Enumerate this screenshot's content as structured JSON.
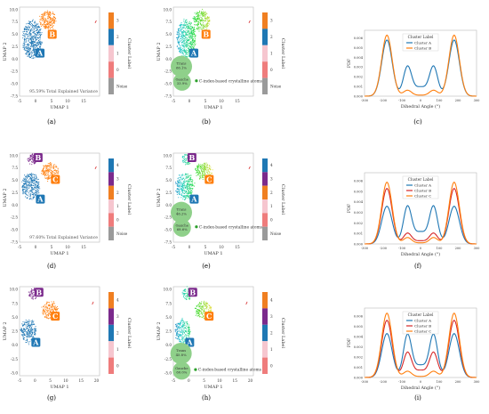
{
  "panels": [
    {
      "id": "a",
      "caption": "(a)",
      "kind": "umap",
      "annotation": "95.59% Total Explained Variance",
      "xlabel": "UMAP 1",
      "ylabel": "UMAP 2",
      "xticks": [
        -5,
        0,
        5,
        10,
        15
      ],
      "yticks": [
        10.0,
        7.5,
        5.0,
        2.5,
        0.0,
        -2.5,
        -5.0,
        -7.5
      ],
      "xlim": [
        -5,
        20
      ],
      "ylim": [
        -7.5,
        10.5
      ],
      "clusters": [
        {
          "label": "A",
          "color": "#1f77b4",
          "cx": -1,
          "cy": 4,
          "rx": 3.0,
          "ry": 3.8,
          "label_x": 1.4,
          "label_y": 1.2
        },
        {
          "label": "B",
          "color": "#ff7f0e",
          "cx": 3.8,
          "cy": 7.8,
          "rx": 2.6,
          "ry": 1.9,
          "label_x": 5.2,
          "label_y": 5.0
        }
      ],
      "colorbar": {
        "title": "Cluster Label",
        "labels": [
          "3",
          "2",
          "1",
          "0",
          "Noise"
        ],
        "colors": [
          "#f07f21",
          "#1f78b4",
          "#f6c6cf",
          "#ef7c7c",
          "#9a9a9a"
        ]
      }
    },
    {
      "id": "b",
      "caption": "(b)",
      "kind": "umap-colored",
      "annotation": "",
      "xlabel": "UMAP 1",
      "ylabel": "UMAP 2",
      "xticks": [
        -5,
        0,
        5,
        10,
        15
      ],
      "yticks": [
        10.0,
        7.5,
        5.0,
        2.5,
        0.0,
        -2.5,
        -5.0,
        -7.5
      ],
      "xlim": [
        -5,
        20
      ],
      "ylim": [
        -7.5,
        10.5
      ],
      "clusters": [
        {
          "label": "A",
          "color": "#1f77b4",
          "cx": -1,
          "cy": 4,
          "rx": 3.0,
          "ry": 3.8,
          "label_x": 1.4,
          "label_y": 1.2
        },
        {
          "label": "B",
          "color": "#ff7f0e",
          "cx": 3.8,
          "cy": 7.8,
          "rx": 2.6,
          "ry": 1.9,
          "label_x": 5.2,
          "label_y": 5.0
        }
      ],
      "pie": {
        "items": [
          {
            "name": "Trans",
            "value": "66.1%"
          },
          {
            "name": "Gauche",
            "value": "33.9%"
          }
        ]
      },
      "legend_text": "C-index-based crystalline atoms",
      "colorbar": {
        "title": "Cluster Label",
        "labels": [
          "3",
          "2",
          "1",
          "0",
          "Noise"
        ],
        "colors": [
          "#f07f21",
          "#1f78b4",
          "#f6c6cf",
          "#ef7c7c",
          "#9a9a9a"
        ]
      }
    },
    {
      "id": "c",
      "caption": "(c)",
      "kind": "pdf",
      "legend_title": "Cluster Label",
      "xlabel": "Dihedral Angle (°)",
      "ylabel": "PDF",
      "xticks": [
        -300,
        -200,
        -100,
        0,
        100,
        200,
        300
      ],
      "yticks": [
        0.0,
        0.001,
        0.002,
        0.003,
        0.004,
        0.005,
        0.006
      ],
      "xlim": [
        -300,
        300
      ],
      "ylim": [
        0,
        0.0068
      ],
      "series": [
        {
          "name": "Cluster A",
          "color": "#1f77b4",
          "peak": 0.0058,
          "side": 0.003,
          "valley": 0.0019
        },
        {
          "name": "Cluster B",
          "color": "#ff7f0e",
          "peak": 0.0063,
          "side": 0.0006,
          "valley": 0.0002
        }
      ]
    },
    {
      "id": "d",
      "caption": "(d)",
      "kind": "umap",
      "annotation": "97.60% Total Explained Variance",
      "xlabel": "UMAP 1",
      "ylabel": "UMAP 2",
      "xticks": [
        -5,
        0,
        5,
        10,
        15
      ],
      "yticks": [
        10.0,
        7.5,
        5.0,
        2.5,
        0.0,
        -2.5,
        -5.0,
        -7.5
      ],
      "xlim": [
        -5,
        20
      ],
      "ylim": [
        -7.5,
        10.5
      ],
      "clusters": [
        {
          "label": "A",
          "color": "#1f77b4",
          "cx": -1.5,
          "cy": 3.8,
          "rx": 2.8,
          "ry": 2.6,
          "label_x": 1.5,
          "label_y": 1.2
        },
        {
          "label": "B",
          "color": "#7b2a8c",
          "cx": -1.0,
          "cy": 9.2,
          "rx": 1.5,
          "ry": 1.0,
          "label_x": 0.8,
          "label_y": 9.6
        },
        {
          "label": "C",
          "color": "#ff7f0e",
          "cx": 4.5,
          "cy": 6.8,
          "rx": 2.6,
          "ry": 1.7,
          "label_x": 6.2,
          "label_y": 5.2
        }
      ],
      "colorbar": {
        "title": "Cluster Label",
        "labels": [
          "4",
          "3",
          "2",
          "1",
          "0",
          "Noise"
        ],
        "colors": [
          "#1f78b4",
          "#7b2a8c",
          "#f07f21",
          "#f6c6cf",
          "#ef7c7c",
          "#9a9a9a"
        ]
      }
    },
    {
      "id": "e",
      "caption": "(e)",
      "kind": "umap-colored",
      "annotation": "",
      "xlabel": "UMAP 1",
      "ylabel": "UMAP 2",
      "xticks": [
        -5,
        0,
        5,
        10,
        15
      ],
      "yticks": [
        10.0,
        7.5,
        5.0,
        2.5,
        0.0,
        -2.5,
        -5.0,
        -7.5
      ],
      "xlim": [
        -5,
        20
      ],
      "ylim": [
        -7.5,
        10.5
      ],
      "clusters": [
        {
          "label": "A",
          "color": "#1f77b4",
          "cx": -1.5,
          "cy": 3.8,
          "rx": 2.8,
          "ry": 2.6,
          "label_x": 1.5,
          "label_y": 1.2
        },
        {
          "label": "B",
          "color": "#7b2a8c",
          "cx": -1.0,
          "cy": 9.2,
          "rx": 1.5,
          "ry": 1.0,
          "label_x": 0.8,
          "label_y": 9.6
        },
        {
          "label": "C",
          "color": "#ff7f0e",
          "cx": 4.5,
          "cy": 6.8,
          "rx": 2.6,
          "ry": 1.7,
          "label_x": 6.2,
          "label_y": 5.2
        }
      ],
      "pie": {
        "items": [
          {
            "name": "Trans",
            "value": "46.2%"
          },
          {
            "name": "Gauche",
            "value": "68.6%"
          }
        ]
      },
      "legend_text": "C-index-based crystalline atoms",
      "colorbar": {
        "title": "Cluster Label",
        "labels": [
          "4",
          "3",
          "2",
          "1",
          "0",
          "Noise"
        ],
        "colors": [
          "#1f78b4",
          "#7b2a8c",
          "#f07f21",
          "#f6c6cf",
          "#ef7c7c",
          "#9a9a9a"
        ]
      }
    },
    {
      "id": "f",
      "caption": "(f)",
      "kind": "pdf",
      "legend_title": "Cluster Label",
      "xlabel": "Dihedral Angle (°)",
      "ylabel": "PDF",
      "xticks": [
        -300,
        -200,
        -100,
        0,
        100,
        200,
        300
      ],
      "yticks": [
        0.0,
        0.001,
        0.002,
        0.003,
        0.004,
        0.005,
        0.006
      ],
      "xlim": [
        -300,
        300
      ],
      "ylim": [
        0,
        0.0068
      ],
      "series": [
        {
          "name": "Cluster A",
          "color": "#1f77b4",
          "peak": 0.0036,
          "side": 0.0035,
          "valley": 0.0023
        },
        {
          "name": "Cluster B",
          "color": "#d62728",
          "peak": 0.0053,
          "side": 0.001,
          "valley": 0.0006
        },
        {
          "name": "Cluster C",
          "color": "#ff7f0e",
          "peak": 0.0059,
          "side": 0.0006,
          "valley": 0.0002
        }
      ]
    },
    {
      "id": "g",
      "caption": "(g)",
      "kind": "umap",
      "annotation": "",
      "xlabel": "UMAP 1",
      "ylabel": "UMAP 2",
      "xticks": [
        -5,
        0,
        5,
        10,
        15,
        20
      ],
      "yticks": [
        10.0,
        7.5,
        5.0,
        2.5,
        0.0,
        -2.5,
        -5.0
      ],
      "xlim": [
        -5,
        21
      ],
      "ylim": [
        -5.5,
        10.5
      ],
      "clusters": [
        {
          "label": "A",
          "color": "#1f77b4",
          "cx": -2.0,
          "cy": 2.5,
          "rx": 2.5,
          "ry": 2.1,
          "label_x": 0.3,
          "label_y": 0.5
        },
        {
          "label": "B",
          "color": "#7b2a8c",
          "cx": -0.5,
          "cy": 9.2,
          "rx": 1.5,
          "ry": 1.0,
          "label_x": 1.3,
          "label_y": 9.5
        },
        {
          "label": "C",
          "color": "#ff7f0e",
          "cx": 4.8,
          "cy": 6.3,
          "rx": 2.7,
          "ry": 1.5,
          "label_x": 6.6,
          "label_y": 5.2
        }
      ],
      "colorbar": {
        "title": "Cluster Label",
        "labels": [
          "4",
          "3",
          "2",
          "1",
          "0"
        ],
        "colors": [
          "#f07f21",
          "#7b2a8c",
          "#1f78b4",
          "#f6c6cf",
          "#ef7c7c"
        ]
      }
    },
    {
      "id": "h",
      "caption": "(h)",
      "kind": "umap-colored",
      "annotation": "",
      "xlabel": "UMAP 1",
      "ylabel": "UMAP 2",
      "xticks": [
        -5,
        0,
        5,
        10,
        15,
        20
      ],
      "yticks": [
        10.0,
        7.5,
        5.0,
        2.5,
        0.0,
        -2.5,
        -5.0
      ],
      "xlim": [
        -5,
        21
      ],
      "ylim": [
        -5.5,
        10.5
      ],
      "clusters": [
        {
          "label": "A",
          "color": "#1f77b4",
          "cx": -2.0,
          "cy": 2.5,
          "rx": 2.5,
          "ry": 2.1,
          "label_x": 0.3,
          "label_y": 0.5
        },
        {
          "label": "B",
          "color": "#7b2a8c",
          "cx": -0.5,
          "cy": 9.2,
          "rx": 1.5,
          "ry": 1.0,
          "label_x": 1.3,
          "label_y": 9.5
        },
        {
          "label": "C",
          "color": "#ff7f0e",
          "cx": 4.8,
          "cy": 6.3,
          "rx": 2.7,
          "ry": 1.5,
          "label_x": 6.6,
          "label_y": 5.2
        }
      ],
      "pie": {
        "items": [
          {
            "name": "Trans",
            "value": "45.8%"
          },
          {
            "name": "Gauche",
            "value": "60.0%"
          }
        ]
      },
      "legend_text": "C-index-based crystalline atoms",
      "colorbar": {
        "title": "Cluster Label",
        "labels": [
          "4",
          "3",
          "2",
          "1",
          "0"
        ],
        "colors": [
          "#f07f21",
          "#7b2a8c",
          "#1f78b4",
          "#f6c6cf",
          "#ef7c7c"
        ]
      }
    },
    {
      "id": "i",
      "caption": "(i)",
      "kind": "pdf",
      "legend_title": "Cluster Label",
      "xlabel": "Dihedral Angle (°)",
      "ylabel": "PDF",
      "xticks": [
        -300,
        -200,
        -100,
        0,
        100,
        200,
        300
      ],
      "yticks": [
        0.0,
        0.001,
        0.002,
        0.003,
        0.004,
        0.005,
        0.006
      ],
      "xlim": [
        -300,
        300
      ],
      "ylim": [
        0,
        0.0068
      ],
      "series": [
        {
          "name": "Cluster A",
          "color": "#1f77b4",
          "peak": 0.0043,
          "side": 0.0041,
          "valley": 0.0024
        },
        {
          "name": "Cluster B",
          "color": "#d62728",
          "peak": 0.0056,
          "side": 0.0024,
          "valley": 0.0014
        },
        {
          "name": "Cluster C",
          "color": "#ff7f0e",
          "peak": 0.0063,
          "side": 0.0006,
          "valley": 0.0002
        }
      ]
    }
  ],
  "chart_data": [
    {
      "type": "scatter",
      "panel": "a",
      "clusters": [
        "A",
        "B"
      ],
      "annotation": "95.59% Total Explained Variance",
      "xlabel": "UMAP 1",
      "ylabel": "UMAP 2",
      "colorbar_title": "Cluster Label"
    },
    {
      "type": "scatter",
      "panel": "b",
      "clusters": [
        "A",
        "B"
      ],
      "pie": {
        "Trans": "66.1%",
        "Gauche": "33.9%"
      },
      "legend": "C-index-based crystalline atoms"
    },
    {
      "type": "line",
      "panel": "c",
      "xlabel": "Dihedral Angle (°)",
      "ylabel": "PDF",
      "x_range": [
        -300,
        300
      ],
      "series": [
        {
          "name": "Cluster A",
          "peak_pdf": 0.0058
        },
        {
          "name": "Cluster B",
          "peak_pdf": 0.0063
        }
      ]
    },
    {
      "type": "scatter",
      "panel": "d",
      "clusters": [
        "A",
        "B",
        "C"
      ],
      "annotation": "97.60% Total Explained Variance"
    },
    {
      "type": "scatter",
      "panel": "e",
      "clusters": [
        "A",
        "B",
        "C"
      ],
      "pie": {
        "Trans": "46.2%",
        "Gauche": "68.6%"
      },
      "legend": "C-index-based crystalline atoms"
    },
    {
      "type": "line",
      "panel": "f",
      "xlabel": "Dihedral Angle (°)",
      "ylabel": "PDF",
      "series": [
        {
          "name": "Cluster A",
          "peak_pdf": 0.0036
        },
        {
          "name": "Cluster B",
          "peak_pdf": 0.0053
        },
        {
          "name": "Cluster C",
          "peak_pdf": 0.0059
        }
      ]
    },
    {
      "type": "scatter",
      "panel": "g",
      "clusters": [
        "A",
        "B",
        "C"
      ]
    },
    {
      "type": "scatter",
      "panel": "h",
      "clusters": [
        "A",
        "B",
        "C"
      ],
      "pie": {
        "Trans": "45.8%",
        "Gauche": "60.0%"
      },
      "legend": "C-index-based crystalline atoms"
    },
    {
      "type": "line",
      "panel": "i",
      "xlabel": "Dihedral Angle (°)",
      "ylabel": "PDF",
      "series": [
        {
          "name": "Cluster A",
          "peak_pdf": 0.0043
        },
        {
          "name": "Cluster B",
          "peak_pdf": 0.0056
        },
        {
          "name": "Cluster C",
          "peak_pdf": 0.0063
        }
      ]
    }
  ]
}
